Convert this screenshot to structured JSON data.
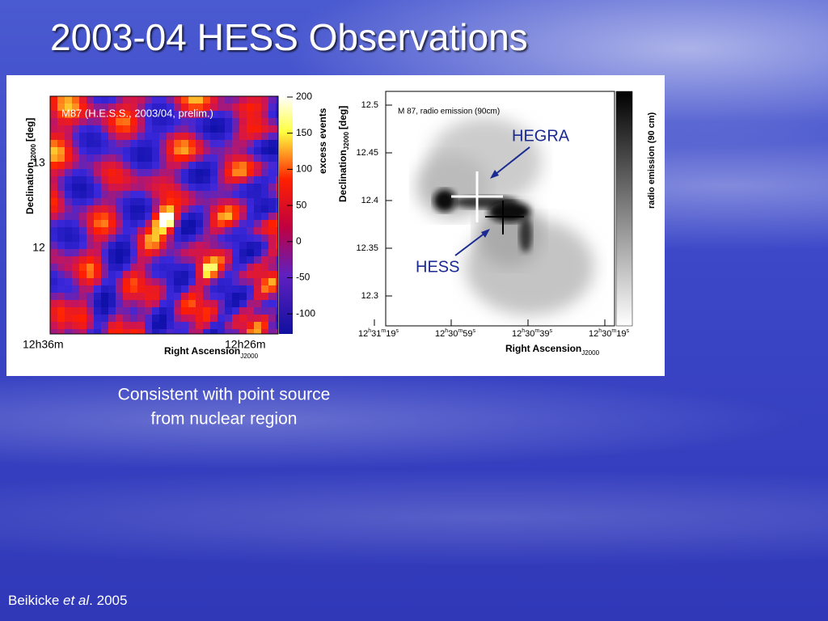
{
  "title": "2003-04 HESS Observations",
  "figure": {
    "left": {
      "panel_label": "M87 (H.E.S.S., 2003/04, prelim.)",
      "y_label": "Declination",
      "y_label_sub": "J2000",
      "y_label_unit": "[deg]",
      "y_ticks": [
        "13",
        "12"
      ],
      "x_ticks": [
        "12h36m",
        "12h26m"
      ],
      "x_label": "Right Ascension",
      "x_label_sub": "J2000",
      "colorbar_label": "excess events",
      "colorbar_ticks": [
        "200",
        "150",
        "100",
        "50",
        "0",
        "-50",
        "-100"
      ]
    },
    "right": {
      "panel_label": "M 87, radio emission (90cm)",
      "y_label": "Declination",
      "y_label_sub": "J2000",
      "y_label_unit": "[deg]",
      "y_ticks": [
        "12.5",
        "12.45",
        "12.4",
        "12.35",
        "12.3"
      ],
      "x_ticks": [
        [
          "12",
          "h",
          "31",
          "m",
          "19",
          "s"
        ],
        [
          "12",
          "h",
          "30",
          "m",
          "59",
          "s"
        ],
        [
          "12",
          "h",
          "30",
          "m",
          "39",
          "s"
        ],
        [
          "12",
          "h",
          "30",
          "m",
          "19",
          "s"
        ]
      ],
      "x_label": "Right Ascension",
      "x_label_sub": "J2000",
      "colorbar_label": "radio emission (90 cm)",
      "annotations": [
        "HEGRA",
        "HESS"
      ]
    }
  },
  "caption": [
    "Consistent with point source",
    "from nuclear region"
  ],
  "citation": [
    "Beikicke ",
    "et al",
    ". 2005"
  ]
}
